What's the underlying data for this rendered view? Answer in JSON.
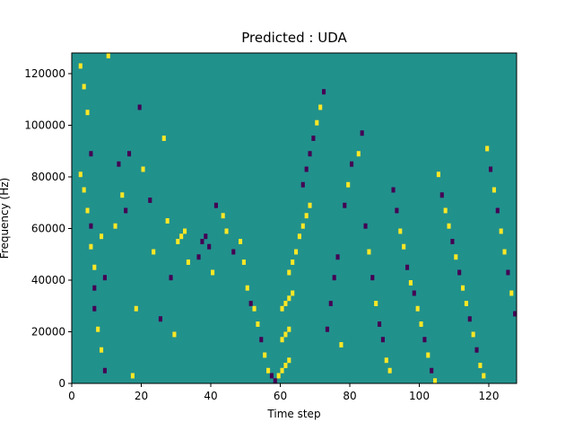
{
  "chart_data": {
    "type": "heatmap",
    "title": "Predicted : UDA",
    "xlabel": "Time step",
    "ylabel": "Frequency (Hz)",
    "xlim": [
      0,
      128
    ],
    "ylim": [
      0,
      128000
    ],
    "xticks": [
      0,
      20,
      40,
      60,
      80,
      100,
      120
    ],
    "yticks": [
      0,
      20000,
      40000,
      60000,
      80000,
      100000,
      120000
    ],
    "n_time_steps": 128,
    "n_freq_bins": 64,
    "bin_height_hz": 2000,
    "colormap": {
      "-1": "#440154",
      "0": "#21918c",
      "1": "#fde725"
    },
    "background_class": 0,
    "cells": [
      {
        "t": 2,
        "f": 61,
        "v": 1
      },
      {
        "t": 3,
        "f": 57,
        "v": 1
      },
      {
        "t": 4,
        "f": 52,
        "v": 1
      },
      {
        "t": 2,
        "f": 40,
        "v": 1
      },
      {
        "t": 3,
        "f": 37,
        "v": 1
      },
      {
        "t": 5,
        "f": 44,
        "v": -1
      },
      {
        "t": 4,
        "f": 33,
        "v": 1
      },
      {
        "t": 5,
        "f": 30,
        "v": -1
      },
      {
        "t": 5,
        "f": 26,
        "v": 1
      },
      {
        "t": 6,
        "f": 22,
        "v": 1
      },
      {
        "t": 6,
        "f": 18,
        "v": -1
      },
      {
        "t": 6,
        "f": 14,
        "v": -1
      },
      {
        "t": 7,
        "f": 10,
        "v": 1
      },
      {
        "t": 8,
        "f": 6,
        "v": 1
      },
      {
        "t": 9,
        "f": 2,
        "v": -1
      },
      {
        "t": 8,
        "f": 28,
        "v": 1
      },
      {
        "t": 9,
        "f": 20,
        "v": -1
      },
      {
        "t": 10,
        "f": 63,
        "v": 1
      },
      {
        "t": 12,
        "f": 30,
        "v": 1
      },
      {
        "t": 13,
        "f": 42,
        "v": -1
      },
      {
        "t": 14,
        "f": 36,
        "v": 1
      },
      {
        "t": 15,
        "f": 33,
        "v": -1
      },
      {
        "t": 16,
        "f": 44,
        "v": -1
      },
      {
        "t": 17,
        "f": 1,
        "v": 1
      },
      {
        "t": 18,
        "f": 14,
        "v": 1
      },
      {
        "t": 19,
        "f": 53,
        "v": -1
      },
      {
        "t": 20,
        "f": 41,
        "v": 1
      },
      {
        "t": 22,
        "f": 35,
        "v": -1
      },
      {
        "t": 23,
        "f": 25,
        "v": 1
      },
      {
        "t": 25,
        "f": 12,
        "v": -1
      },
      {
        "t": 26,
        "f": 47,
        "v": 1
      },
      {
        "t": 27,
        "f": 31,
        "v": 1
      },
      {
        "t": 28,
        "f": 20,
        "v": -1
      },
      {
        "t": 29,
        "f": 9,
        "v": 1
      },
      {
        "t": 30,
        "f": 27,
        "v": 1
      },
      {
        "t": 31,
        "f": 28,
        "v": 1
      },
      {
        "t": 32,
        "f": 29,
        "v": 1
      },
      {
        "t": 33,
        "f": 23,
        "v": 1
      },
      {
        "t": 36,
        "f": 24,
        "v": -1
      },
      {
        "t": 37,
        "f": 27,
        "v": -1
      },
      {
        "t": 38,
        "f": 28,
        "v": -1
      },
      {
        "t": 39,
        "f": 26,
        "v": -1
      },
      {
        "t": 40,
        "f": 21,
        "v": 1
      },
      {
        "t": 41,
        "f": 34,
        "v": -1
      },
      {
        "t": 43,
        "f": 32,
        "v": 1
      },
      {
        "t": 44,
        "f": 29,
        "v": 1
      },
      {
        "t": 46,
        "f": 25,
        "v": -1
      },
      {
        "t": 48,
        "f": 27,
        "v": 1
      },
      {
        "t": 49,
        "f": 23,
        "v": 1
      },
      {
        "t": 50,
        "f": 18,
        "v": 1
      },
      {
        "t": 51,
        "f": 15,
        "v": -1
      },
      {
        "t": 52,
        "f": 14,
        "v": 1
      },
      {
        "t": 53,
        "f": 11,
        "v": 1
      },
      {
        "t": 54,
        "f": 8,
        "v": -1
      },
      {
        "t": 55,
        "f": 5,
        "v": 1
      },
      {
        "t": 56,
        "f": 2,
        "v": 1
      },
      {
        "t": 57,
        "f": 1,
        "v": -1
      },
      {
        "t": 58,
        "f": 0,
        "v": -1
      },
      {
        "t": 59,
        "f": 1,
        "v": 1
      },
      {
        "t": 60,
        "f": 2,
        "v": 1
      },
      {
        "t": 61,
        "f": 3,
        "v": 1
      },
      {
        "t": 62,
        "f": 4,
        "v": 1
      },
      {
        "t": 60,
        "f": 8,
        "v": 1
      },
      {
        "t": 61,
        "f": 9,
        "v": 1
      },
      {
        "t": 62,
        "f": 10,
        "v": 1
      },
      {
        "t": 60,
        "f": 14,
        "v": 1
      },
      {
        "t": 61,
        "f": 15,
        "v": 1
      },
      {
        "t": 62,
        "f": 16,
        "v": 1
      },
      {
        "t": 63,
        "f": 17,
        "v": 1
      },
      {
        "t": 62,
        "f": 21,
        "v": 1
      },
      {
        "t": 63,
        "f": 23,
        "v": 1
      },
      {
        "t": 64,
        "f": 25,
        "v": 1
      },
      {
        "t": 65,
        "f": 28,
        "v": 1
      },
      {
        "t": 66,
        "f": 30,
        "v": 1
      },
      {
        "t": 67,
        "f": 32,
        "v": 1
      },
      {
        "t": 68,
        "f": 34,
        "v": 1
      },
      {
        "t": 66,
        "f": 38,
        "v": -1
      },
      {
        "t": 67,
        "f": 41,
        "v": -1
      },
      {
        "t": 68,
        "f": 44,
        "v": -1
      },
      {
        "t": 69,
        "f": 47,
        "v": -1
      },
      {
        "t": 70,
        "f": 50,
        "v": 1
      },
      {
        "t": 71,
        "f": 53,
        "v": 1
      },
      {
        "t": 72,
        "f": 56,
        "v": -1
      },
      {
        "t": 73,
        "f": 10,
        "v": -1
      },
      {
        "t": 74,
        "f": 15,
        "v": -1
      },
      {
        "t": 75,
        "f": 20,
        "v": -1
      },
      {
        "t": 76,
        "f": 24,
        "v": -1
      },
      {
        "t": 77,
        "f": 7,
        "v": 1
      },
      {
        "t": 78,
        "f": 34,
        "v": -1
      },
      {
        "t": 79,
        "f": 38,
        "v": 1
      },
      {
        "t": 80,
        "f": 42,
        "v": -1
      },
      {
        "t": 82,
        "f": 44,
        "v": 1
      },
      {
        "t": 83,
        "f": 48,
        "v": -1
      },
      {
        "t": 84,
        "f": 30,
        "v": -1
      },
      {
        "t": 85,
        "f": 25,
        "v": 1
      },
      {
        "t": 86,
        "f": 20,
        "v": -1
      },
      {
        "t": 87,
        "f": 15,
        "v": 1
      },
      {
        "t": 88,
        "f": 11,
        "v": -1
      },
      {
        "t": 89,
        "f": 8,
        "v": -1
      },
      {
        "t": 90,
        "f": 4,
        "v": 1
      },
      {
        "t": 91,
        "f": 2,
        "v": 1
      },
      {
        "t": 92,
        "f": 37,
        "v": -1
      },
      {
        "t": 93,
        "f": 33,
        "v": -1
      },
      {
        "t": 94,
        "f": 29,
        "v": 1
      },
      {
        "t": 95,
        "f": 26,
        "v": 1
      },
      {
        "t": 96,
        "f": 22,
        "v": -1
      },
      {
        "t": 97,
        "f": 19,
        "v": 1
      },
      {
        "t": 98,
        "f": 17,
        "v": -1
      },
      {
        "t": 99,
        "f": 14,
        "v": 1
      },
      {
        "t": 100,
        "f": 11,
        "v": 1
      },
      {
        "t": 101,
        "f": 8,
        "v": -1
      },
      {
        "t": 102,
        "f": 5,
        "v": 1
      },
      {
        "t": 103,
        "f": 2,
        "v": -1
      },
      {
        "t": 104,
        "f": 0,
        "v": 1
      },
      {
        "t": 105,
        "f": 40,
        "v": 1
      },
      {
        "t": 106,
        "f": 36,
        "v": -1
      },
      {
        "t": 107,
        "f": 33,
        "v": 1
      },
      {
        "t": 108,
        "f": 30,
        "v": 1
      },
      {
        "t": 109,
        "f": 27,
        "v": -1
      },
      {
        "t": 110,
        "f": 24,
        "v": 1
      },
      {
        "t": 111,
        "f": 21,
        "v": -1
      },
      {
        "t": 112,
        "f": 18,
        "v": 1
      },
      {
        "t": 113,
        "f": 15,
        "v": 1
      },
      {
        "t": 114,
        "f": 12,
        "v": -1
      },
      {
        "t": 115,
        "f": 9,
        "v": 1
      },
      {
        "t": 116,
        "f": 6,
        "v": -1
      },
      {
        "t": 117,
        "f": 3,
        "v": 1
      },
      {
        "t": 118,
        "f": 1,
        "v": 1
      },
      {
        "t": 119,
        "f": 45,
        "v": 1
      },
      {
        "t": 120,
        "f": 41,
        "v": -1
      },
      {
        "t": 121,
        "f": 37,
        "v": 1
      },
      {
        "t": 122,
        "f": 33,
        "v": -1
      },
      {
        "t": 123,
        "f": 29,
        "v": 1
      },
      {
        "t": 124,
        "f": 25,
        "v": 1
      },
      {
        "t": 125,
        "f": 21,
        "v": -1
      },
      {
        "t": 126,
        "f": 17,
        "v": 1
      },
      {
        "t": 127,
        "f": 13,
        "v": -1
      }
    ]
  }
}
